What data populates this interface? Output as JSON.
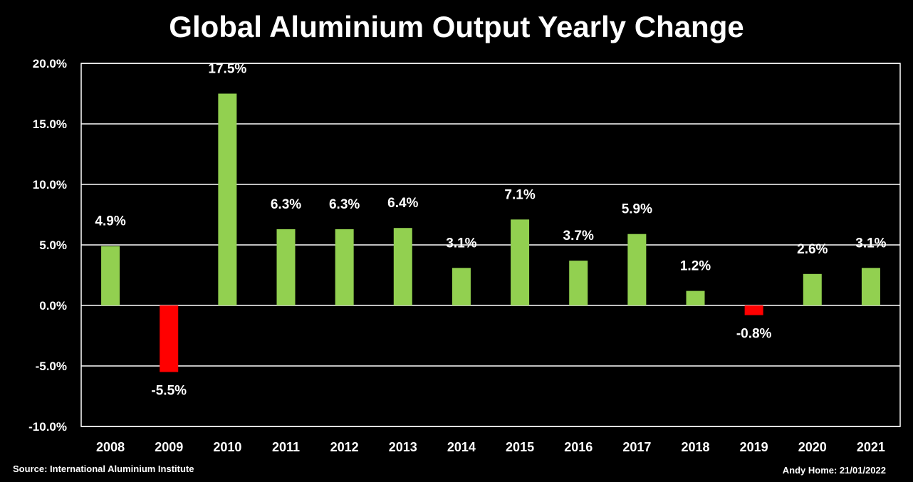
{
  "chart_data": {
    "type": "bar",
    "title": "Global Aluminium Output Yearly Change",
    "categories": [
      "2008",
      "2009",
      "2010",
      "2011",
      "2012",
      "2013",
      "2014",
      "2015",
      "2016",
      "2017",
      "2018",
      "2019",
      "2020",
      "2021"
    ],
    "values": [
      4.9,
      -5.5,
      17.5,
      6.3,
      6.3,
      6.4,
      3.1,
      7.1,
      3.7,
      5.9,
      1.2,
      -0.8,
      2.6,
      3.1
    ],
    "data_labels": [
      "4.9%",
      "-5.5%",
      "17.5%",
      "6.3%",
      "6.3%",
      "6.4%",
      "3.1%",
      "7.1%",
      "3.7%",
      "5.9%",
      "1.2%",
      "-0.8%",
      "2.6%",
      "3.1%"
    ],
    "ylim": [
      -10,
      20
    ],
    "yticks": [
      20,
      15,
      10,
      5,
      0,
      -5,
      -10
    ],
    "ytick_labels": [
      "20.0%",
      "15.0%",
      "10.0%",
      "5.0%",
      "0.0%",
      "-5.0%",
      "-10.0%"
    ],
    "xlabel": "",
    "ylabel": "",
    "grid": true,
    "colors": {
      "positive": "#92d050",
      "negative": "#ff0000",
      "background": "#000000",
      "text": "#ffffff",
      "grid": "#ffffff"
    }
  },
  "footer": {
    "source": "Source: International Aluminium Institute",
    "credit": "Andy Home: 21/01/2022"
  }
}
